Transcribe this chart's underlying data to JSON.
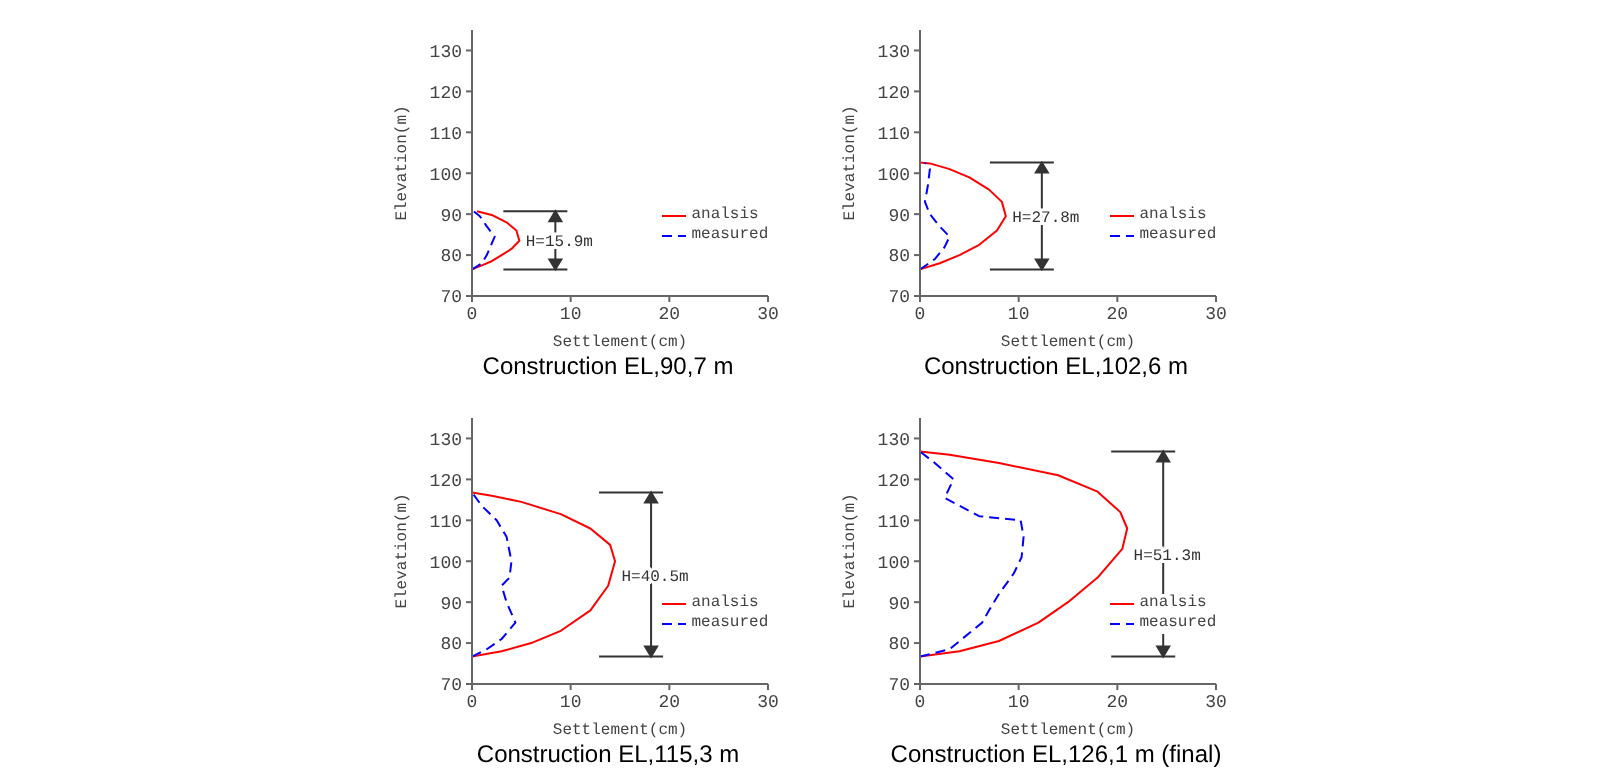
{
  "chart_data": [
    {
      "type": "line",
      "title": "Construction EL,90,7 m",
      "xlabel": "Settlement(cm)",
      "ylabel": "Elevation(m)",
      "xlim": [
        0,
        30
      ],
      "xticks": [
        0,
        10,
        20,
        30
      ],
      "ylim": [
        70,
        135
      ],
      "yticks": [
        70,
        80,
        90,
        100,
        110,
        120,
        130
      ],
      "legend": "right",
      "marker": "none",
      "annotations": [
        "H=15.9m"
      ],
      "series": [
        {
          "name": "analsis",
          "color": "#ff0000",
          "line_style": "solid",
          "x": [
            0,
            1,
            2,
            3,
            4,
            4.8,
            4.5,
            3.5,
            2,
            0.5
          ],
          "values": [
            76.5,
            77.5,
            78.5,
            80,
            81.5,
            83.5,
            86,
            88,
            89.8,
            90.7
          ]
        },
        {
          "name": "measured",
          "color": "#0000ff",
          "line_style": "dashed",
          "x": [
            0,
            1,
            1.5,
            2.3,
            1.5,
            0.8,
            0
          ],
          "values": [
            76.5,
            78,
            80,
            84.5,
            87,
            89.5,
            91
          ]
        }
      ]
    },
    {
      "type": "line",
      "title": "Construction EL,102,6 m",
      "xlabel": "Settlement(cm)",
      "ylabel": "Elevation(m)",
      "xlim": [
        0,
        30
      ],
      "xticks": [
        0,
        10,
        20,
        30
      ],
      "ylim": [
        70,
        135
      ],
      "yticks": [
        70,
        80,
        90,
        100,
        110,
        120,
        130
      ],
      "legend": "right",
      "marker": "none",
      "annotations": [
        "H=27.8m"
      ],
      "series": [
        {
          "name": "analsis",
          "color": "#ff0000",
          "line_style": "solid",
          "x": [
            0,
            2,
            4,
            6,
            7.8,
            8.7,
            8.3,
            7,
            5,
            3,
            1,
            0
          ],
          "values": [
            76.5,
            78,
            80,
            82.5,
            86,
            89.5,
            93,
            96,
            99,
            101,
            102.4,
            102.6
          ]
        },
        {
          "name": "measured",
          "color": "#0000ff",
          "line_style": "dashed",
          "x": [
            0,
            1.5,
            2.5,
            3,
            2,
            1,
            0.5,
            0.8,
            1,
            0.5
          ],
          "values": [
            76.5,
            79,
            82,
            84.5,
            87,
            90,
            93,
            97,
            101,
            102.6
          ]
        }
      ]
    },
    {
      "type": "line",
      "title": "Construction EL,115,3 m",
      "xlabel": "Settlement(cm)",
      "ylabel": "Elevation(m)",
      "xlim": [
        0,
        30
      ],
      "xticks": [
        0,
        10,
        20,
        30
      ],
      "ylim": [
        70,
        135
      ],
      "yticks": [
        70,
        80,
        90,
        100,
        110,
        120,
        130
      ],
      "legend": "right",
      "marker": "none",
      "annotations": [
        "H=40.5m"
      ],
      "series": [
        {
          "name": "analsis",
          "color": "#ff0000",
          "line_style": "solid",
          "x": [
            0,
            3,
            6,
            9,
            12,
            13.8,
            14.5,
            14,
            12,
            9,
            5,
            2,
            0
          ],
          "values": [
            76.7,
            78,
            80,
            83,
            88,
            94,
            100,
            104,
            108,
            111.5,
            114.5,
            116,
            116.8
          ]
        },
        {
          "name": "measured",
          "color": "#0000ff",
          "line_style": "dashed",
          "x": [
            0,
            1.5,
            3,
            4.4,
            3.5,
            3,
            3.8,
            4,
            3.5,
            2.5,
            1,
            0
          ],
          "values": [
            76.7,
            78.5,
            81,
            85,
            90,
            94,
            96,
            100,
            106,
            110,
            113.5,
            116.8
          ]
        }
      ]
    },
    {
      "type": "line",
      "title": "Construction EL,126,1 m (final)",
      "xlabel": "Settlement(cm)",
      "ylabel": "Elevation(m)",
      "xlim": [
        0,
        30
      ],
      "xticks": [
        0,
        10,
        20,
        30
      ],
      "ylim": [
        70,
        135
      ],
      "yticks": [
        70,
        80,
        90,
        100,
        110,
        120,
        130
      ],
      "legend": "right",
      "marker": "none",
      "annotations": [
        "H=51.3m"
      ],
      "series": [
        {
          "name": "analsis",
          "color": "#ff0000",
          "line_style": "solid",
          "x": [
            0,
            4,
            8,
            12,
            15,
            18,
            20.5,
            21,
            20.3,
            18,
            14,
            8,
            3,
            0
          ],
          "values": [
            76.7,
            78,
            80.5,
            85,
            90,
            96,
            103,
            108,
            112,
            117,
            121,
            124,
            126,
            126.8
          ]
        },
        {
          "name": "measured",
          "color": "#0000ff",
          "line_style": "dashed",
          "x": [
            0,
            3,
            6.3,
            7,
            8,
            9.5,
            10.3,
            10.5,
            10.2,
            6,
            2.5,
            3.4,
            1.5,
            0
          ],
          "values": [
            76.7,
            78.5,
            85,
            88,
            92,
            97,
            101,
            106,
            110,
            111,
            115.5,
            120,
            124,
            126.8
          ]
        }
      ]
    }
  ]
}
